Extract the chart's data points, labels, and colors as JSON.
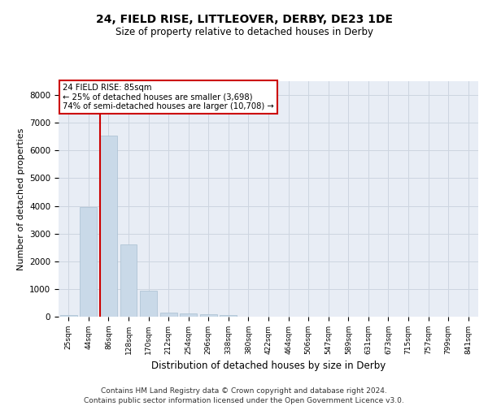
{
  "title1": "24, FIELD RISE, LITTLEOVER, DERBY, DE23 1DE",
  "title2": "Size of property relative to detached houses in Derby",
  "xlabel": "Distribution of detached houses by size in Derby",
  "ylabel": "Number of detached properties",
  "bar_color": "#c9d9e8",
  "bar_edgecolor": "#a8bfd0",
  "vline_color": "#cc0000",
  "vline_x_index": 2,
  "annotation_line1": "24 FIELD RISE: 85sqm",
  "annotation_line2": "← 25% of detached houses are smaller (3,698)",
  "annotation_line3": "74% of semi-detached houses are larger (10,708) →",
  "annotation_box_color": "#ffffff",
  "annotation_box_edgecolor": "#cc0000",
  "categories": [
    "25sqm",
    "44sqm",
    "86sqm",
    "128sqm",
    "170sqm",
    "212sqm",
    "254sqm",
    "296sqm",
    "338sqm",
    "380sqm",
    "422sqm",
    "464sqm",
    "506sqm",
    "547sqm",
    "589sqm",
    "631sqm",
    "673sqm",
    "715sqm",
    "757sqm",
    "799sqm",
    "841sqm"
  ],
  "values": [
    50,
    3950,
    6550,
    2600,
    950,
    150,
    120,
    75,
    50,
    5,
    2,
    1,
    0,
    0,
    0,
    0,
    0,
    0,
    0,
    0,
    0
  ],
  "ylim": [
    0,
    8500
  ],
  "yticks": [
    0,
    1000,
    2000,
    3000,
    4000,
    5000,
    6000,
    7000,
    8000
  ],
  "grid_color": "#cdd5e0",
  "background_color": "#e8edf5",
  "footer1": "Contains HM Land Registry data © Crown copyright and database right 2024.",
  "footer2": "Contains public sector information licensed under the Open Government Licence v3.0."
}
